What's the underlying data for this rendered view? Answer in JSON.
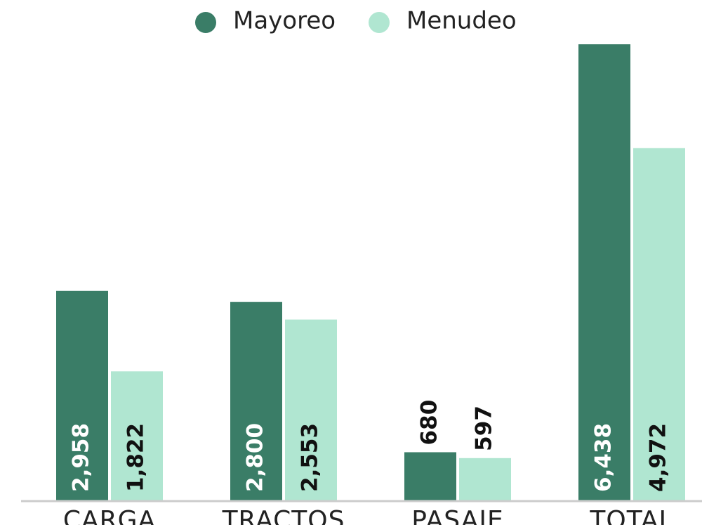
{
  "chart_data": {
    "type": "bar",
    "categories": [
      "CARGA",
      "TRACTOS",
      "PASAJE",
      "TOTAL"
    ],
    "series": [
      {
        "name": "Mayoreo",
        "color": "#3a7d67",
        "values": [
          2958,
          2800,
          680,
          6438
        ],
        "value_labels": [
          "2,958",
          "2,800",
          "680",
          "6,438"
        ]
      },
      {
        "name": "Menudeo",
        "color": "#b0e6d1",
        "values": [
          1822,
          2553,
          597,
          4972
        ],
        "value_labels": [
          "1,822",
          "2,553",
          "597",
          "4,972"
        ]
      }
    ],
    "legend": "top"
  }
}
